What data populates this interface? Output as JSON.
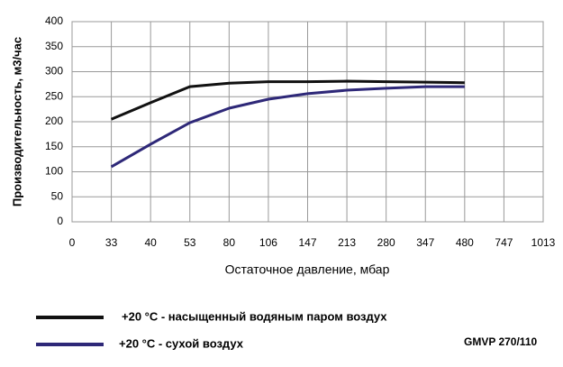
{
  "chart_data": {
    "type": "line",
    "y_label": "Производительность, м3/час",
    "x_label": "Остаточное давление, мбар",
    "categories": [
      "0",
      "33",
      "40",
      "53",
      "80",
      "106",
      "147",
      "213",
      "280",
      "347",
      "480",
      "747",
      "1013"
    ],
    "series": [
      {
        "name": "+20 °C - насыщенный водяным паром воздух",
        "color": "#111111",
        "values": [
          null,
          205,
          238,
          270,
          277,
          280,
          280,
          281,
          280,
          279,
          278,
          null,
          null
        ]
      },
      {
        "name": "+20 °C - сухой воздух",
        "color": "#2e2878",
        "values": [
          null,
          110,
          155,
          198,
          227,
          245,
          256,
          263,
          267,
          270,
          270,
          null,
          null
        ]
      }
    ],
    "ylim": [
      0,
      400
    ],
    "yticks": [
      0,
      50,
      100,
      150,
      200,
      250,
      300,
      350,
      400
    ],
    "grid": true,
    "model": "GMVP 270/110"
  }
}
